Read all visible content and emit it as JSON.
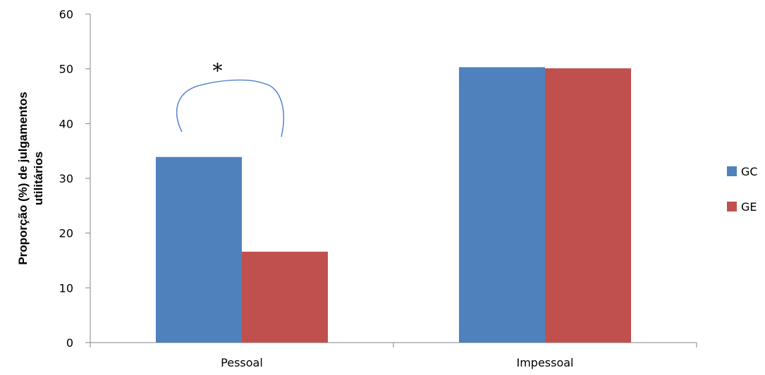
{
  "chart_data": {
    "type": "bar",
    "title": "",
    "xlabel": "",
    "ylabel_lines": [
      "Proporção (%) de julgamentos",
      "utilitários"
    ],
    "categories": [
      "Pessoal",
      "Impessoal"
    ],
    "series": [
      {
        "name": "GC",
        "color": "#4F81BD",
        "values": [
          33.9,
          50.3
        ]
      },
      {
        "name": "GE",
        "color": "#C0504D",
        "values": [
          16.6,
          50.1
        ]
      }
    ],
    "ylim": [
      0,
      60
    ],
    "yticks": [
      0,
      10,
      20,
      30,
      40,
      50,
      60
    ],
    "grid": false,
    "legend_position": "right",
    "annotations": [
      {
        "text": "*",
        "category": "Pessoal",
        "description_shape": "curly bracket spanning the two bars"
      }
    ]
  }
}
